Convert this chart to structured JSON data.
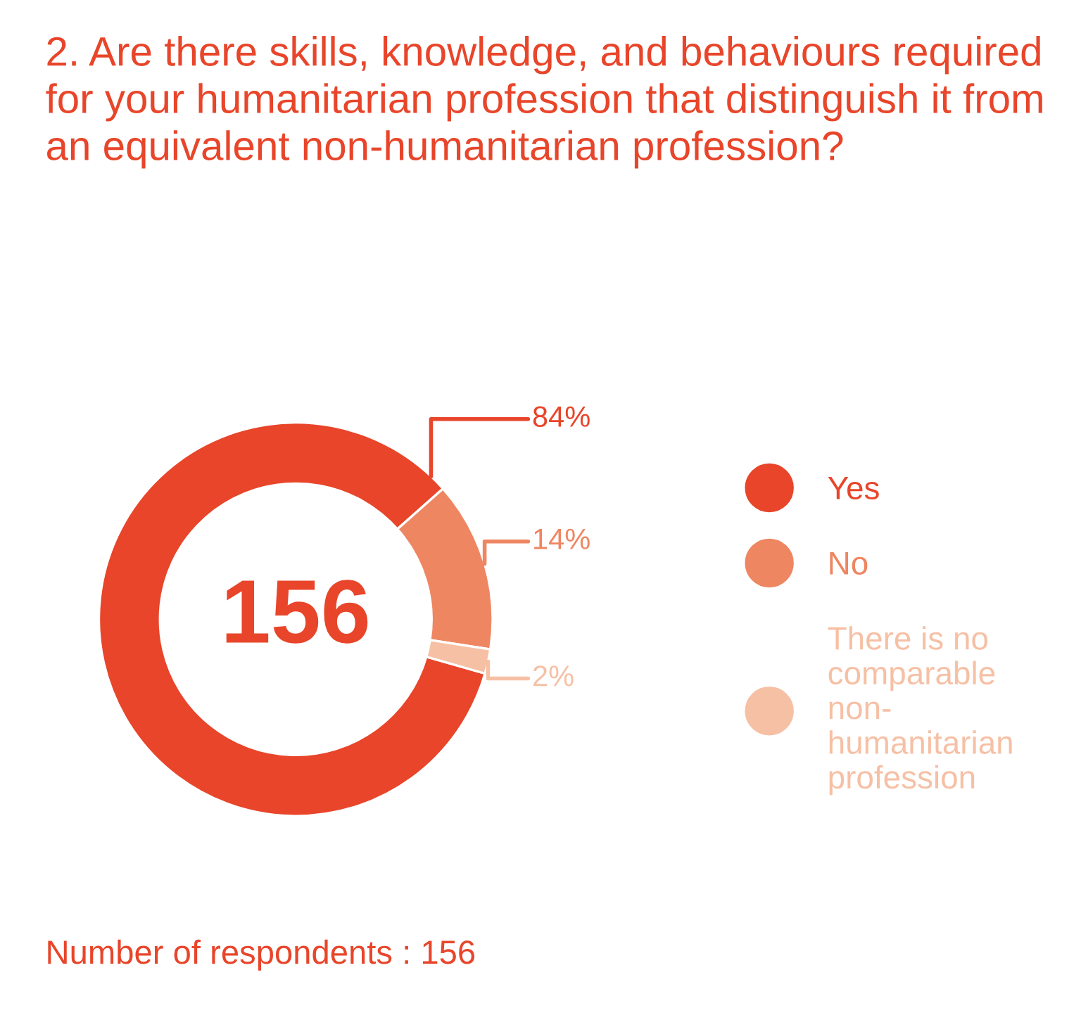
{
  "chart_data": {
    "type": "donut",
    "title": "2. Are there skills, knowledge, and behaviours required for your humanitarian profession that distinguish it from an equivalent non-humanitarian profession?",
    "categories": [
      "Yes",
      "No",
      "There is no comparable non-humanitarian profession"
    ],
    "values": [
      84,
      14,
      2
    ],
    "colors": [
      "#e8452a",
      "#ee8662",
      "#f6c0a5"
    ],
    "value_labels": [
      "84%",
      "14%",
      "2%"
    ],
    "annotations": [
      "156",
      "Number of respondents : 156"
    ],
    "legend": "right"
  }
}
